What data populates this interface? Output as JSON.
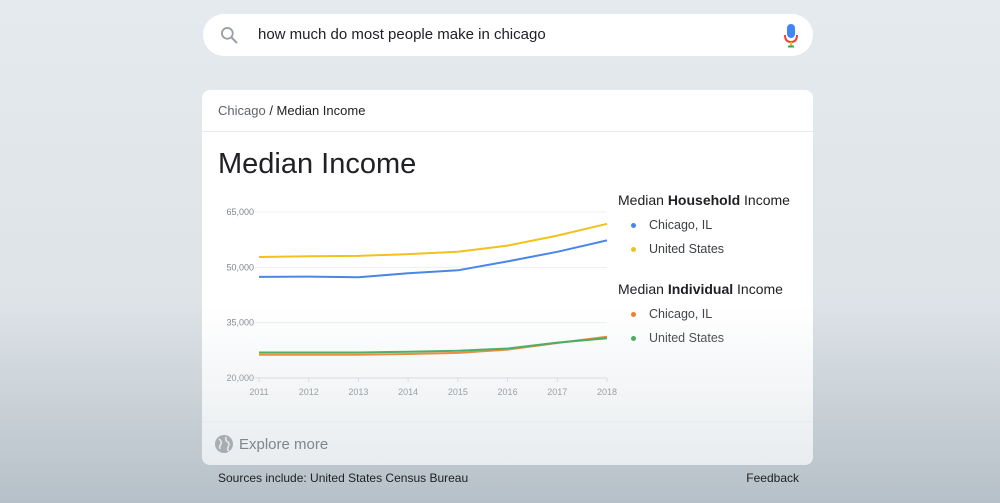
{
  "search": {
    "query": "how much do most people make in chicago",
    "search_icon": "search-icon",
    "mic_icon": "mic-icon"
  },
  "card": {
    "breadcrumb_root": "Chicago",
    "breadcrumb_sep": " / ",
    "breadcrumb_current": "Median Income",
    "title": "Median Income",
    "explore_label": "Explore more",
    "explore_icon": "globe-icon"
  },
  "legend": {
    "household": {
      "pre": "Median ",
      "bold": "Household",
      "post": " Income",
      "items": [
        {
          "label": "Chicago, IL",
          "color": "#4a86e8"
        },
        {
          "label": "United States",
          "color": "#f2c21b"
        }
      ]
    },
    "individual": {
      "pre": "Median ",
      "bold": "Individual",
      "post": " Income",
      "items": [
        {
          "label": "Chicago, IL",
          "color": "#f57c1f"
        },
        {
          "label": "United States",
          "color": "#34a853"
        }
      ]
    }
  },
  "footer": {
    "sources": "Sources include: United States Census Bureau",
    "feedback": "Feedback"
  },
  "chart_data": {
    "type": "line",
    "x": [
      2011,
      2012,
      2013,
      2014,
      2015,
      2016,
      2017,
      2018
    ],
    "y_ticks": [
      "20,000",
      "35,000",
      "50,000",
      "65,000"
    ],
    "ylim": [
      20000,
      65000
    ],
    "grid": true,
    "legend_position": "right",
    "series": [
      {
        "group": "Median Household Income",
        "name": "Chicago, IL",
        "color": "#4a86e8",
        "values": [
          47400,
          47500,
          47300,
          48400,
          49200,
          51600,
          54200,
          57300
        ]
      },
      {
        "group": "Median Household Income",
        "name": "United States",
        "color": "#f2c21b",
        "values": [
          52800,
          53000,
          53100,
          53600,
          54200,
          55900,
          58600,
          61800
        ]
      },
      {
        "group": "Median Individual Income",
        "name": "Chicago, IL",
        "color": "#f57c1f",
        "values": [
          26300,
          26300,
          26300,
          26500,
          26800,
          27700,
          29500,
          31200
        ]
      },
      {
        "group": "Median Individual Income",
        "name": "United States",
        "color": "#34a853",
        "values": [
          26900,
          26900,
          26900,
          27100,
          27400,
          28000,
          29600,
          30800
        ]
      }
    ]
  }
}
